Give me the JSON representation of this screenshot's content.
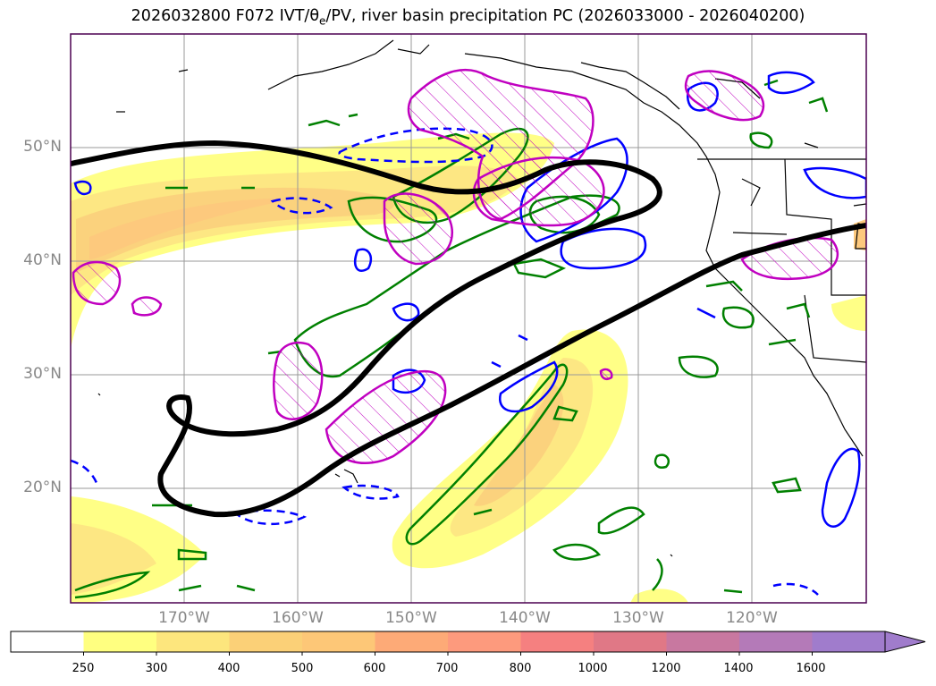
{
  "title": {
    "prefix": "2026032800 F072 IVT/",
    "theta": "θ",
    "theta_sub": "e",
    "suffix": "/PV, river basin precipitation PC (2026033000 - 2026040200)"
  },
  "axes": {
    "lat_labels": [
      "50°N",
      "40°N",
      "30°N",
      "20°N"
    ],
    "lon_labels": [
      "170°W",
      "160°W",
      "150°W",
      "140°W",
      "130°W",
      "120°W"
    ]
  },
  "colorbar": {
    "ticks": [
      "250",
      "300",
      "400",
      "500",
      "600",
      "700",
      "800",
      "1000",
      "1200",
      "1400",
      "1600"
    ],
    "colors": [
      "#ffffff",
      "#ffff80",
      "#fde67d",
      "#fbd077",
      "#fdc777",
      "#fdaa77",
      "#fd9a7d",
      "#f58080",
      "#e07886",
      "#c878a0",
      "#b47ab8",
      "#a07ccc"
    ],
    "extend": "max"
  },
  "legend_colors": {
    "pv_contour": "#000000",
    "theta_e": "#0000ff",
    "precip_green": "#008000",
    "precip_magenta": "#c000c0"
  }
}
